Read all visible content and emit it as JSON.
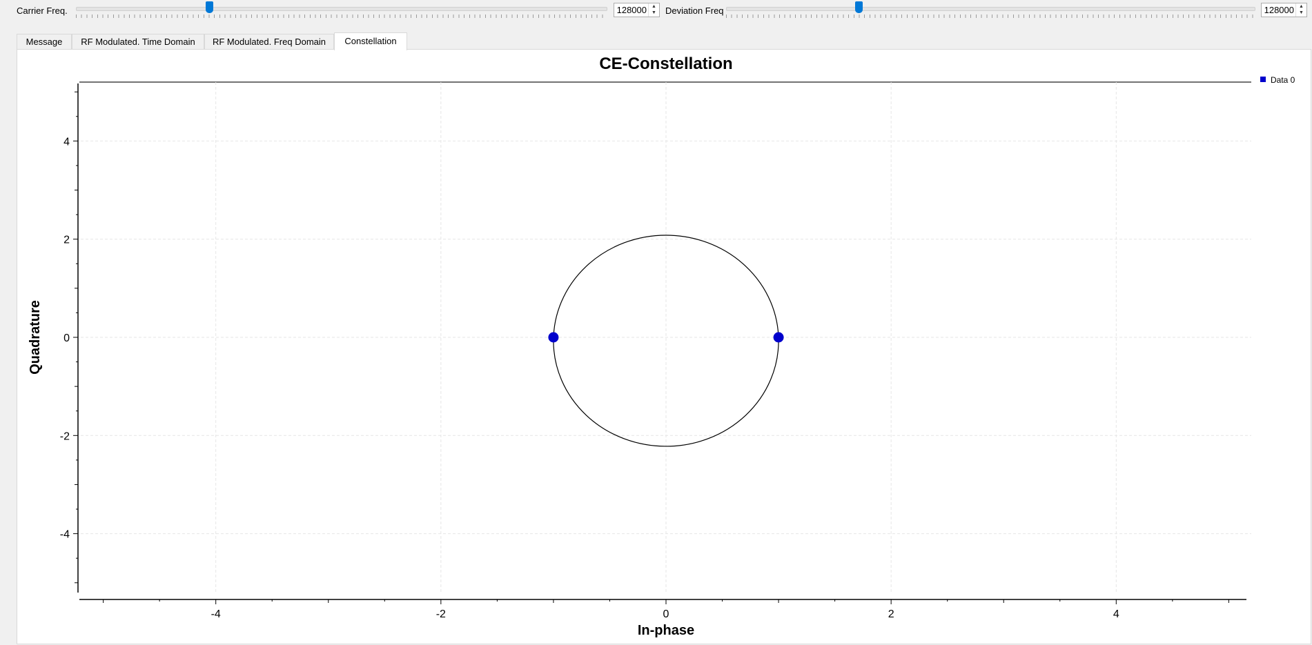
{
  "controls": {
    "carrier": {
      "label": "Carrier Freq.",
      "value": "128000"
    },
    "deviation": {
      "label": "Deviation Freq",
      "value": "128000"
    }
  },
  "tabs": [
    {
      "label": "Message",
      "active": false
    },
    {
      "label": "RF Modulated. Time Domain",
      "active": false
    },
    {
      "label": "RF Modulated. Freq Domain",
      "active": false
    },
    {
      "label": "Constellation",
      "active": true
    }
  ],
  "chart_data": {
    "type": "scatter",
    "title": "CE-Constellation",
    "xlabel": "In-phase",
    "ylabel": "Quadrature",
    "xlim": [
      -5.2,
      5.2
    ],
    "ylim": [
      -5.2,
      5.2
    ],
    "x_ticks": [
      -4,
      -2,
      0,
      2,
      4
    ],
    "y_ticks": [
      4,
      2,
      0,
      -2,
      -4
    ],
    "grid": true,
    "legend_position": "top-right",
    "series": [
      {
        "name": "Data 0",
        "color": "#0000cc",
        "points": [
          [
            -1,
            0
          ],
          [
            1,
            0
          ]
        ]
      }
    ],
    "reference_circle": {
      "center": [
        0,
        -0.07
      ],
      "rx": 1,
      "ry": 2.15,
      "color": "#000000"
    }
  }
}
